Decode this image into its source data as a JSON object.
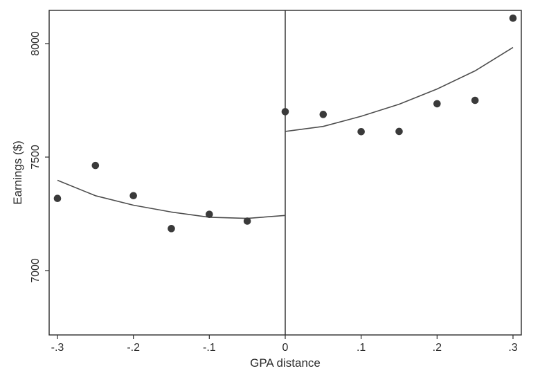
{
  "chart_data": {
    "type": "scatter",
    "xlabel": "GPA distance",
    "ylabel": "Earnings ($)",
    "xlim": [
      -0.3,
      0.3
    ],
    "ylim": [
      6700,
      8150
    ],
    "grid": false,
    "xticks": [
      -0.3,
      -0.2,
      -0.1,
      0,
      0.1,
      0.2,
      0.3
    ],
    "xtick_labels": [
      "-.3",
      "-.2",
      "-.1",
      "0",
      ".1",
      ".2",
      ".3"
    ],
    "yticks": [
      7000,
      7500,
      8000
    ],
    "ytick_labels": [
      "7000",
      "7500",
      "8000"
    ],
    "cutoff": 0,
    "points": {
      "x": [
        -0.3,
        -0.25,
        -0.2,
        -0.15,
        -0.1,
        -0.05,
        0,
        0.05,
        0.1,
        0.15,
        0.2,
        0.25,
        0.3
      ],
      "y": [
        7318,
        7463,
        7330,
        7185,
        7248,
        7218,
        7700,
        7688,
        7612,
        7613,
        7735,
        7750,
        8112
      ]
    },
    "fit_left": {
      "x": [
        -0.3,
        -0.25,
        -0.2,
        -0.15,
        -0.1,
        -0.05,
        0
      ],
      "y": [
        7398,
        7330,
        7288,
        7258,
        7235,
        7230,
        7243
      ]
    },
    "fit_right": {
      "x": [
        0,
        0.05,
        0.1,
        0.15,
        0.2,
        0.25,
        0.3
      ],
      "y": [
        7613,
        7635,
        7680,
        7733,
        7800,
        7880,
        7983
      ]
    },
    "colors": {
      "points": "#3a3a3a",
      "fit_line": "#4d4d4d",
      "axes": "#2b2b2b"
    }
  }
}
